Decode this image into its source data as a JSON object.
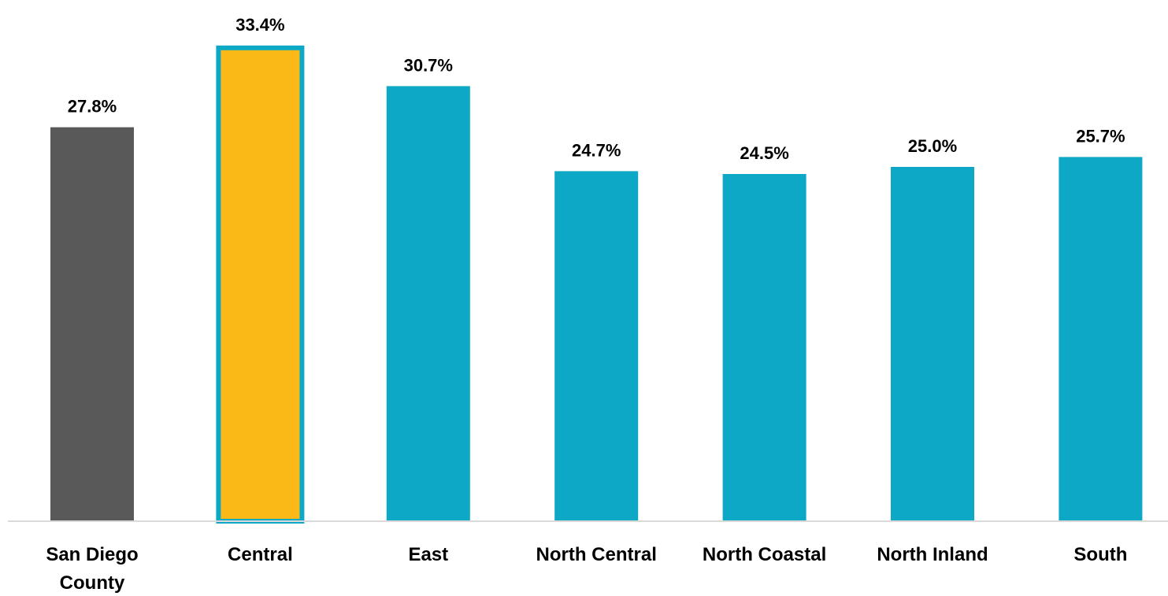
{
  "chart_data": {
    "type": "bar",
    "title": "",
    "xlabel": "",
    "ylabel": "",
    "categories": [
      "San Diego County",
      "Central",
      "East",
      "North Central",
      "North Coastal",
      "North Inland",
      "South"
    ],
    "tick_label_lines": [
      [
        "San Diego",
        "County"
      ],
      [
        "Central"
      ],
      [
        "East"
      ],
      [
        "North Central"
      ],
      [
        "North Coastal"
      ],
      [
        "North Inland"
      ],
      [
        "South"
      ]
    ],
    "values": [
      27.8,
      33.4,
      30.7,
      24.7,
      24.5,
      25.0,
      25.7
    ],
    "value_labels": [
      "27.8%",
      "33.4%",
      "30.7%",
      "24.7%",
      "24.5%",
      "25.0%",
      "25.7%"
    ],
    "ylim": [
      0,
      34
    ],
    "grid": false,
    "legend": "none",
    "colors": {
      "county": "#595959",
      "highlight": "#FBB917",
      "highlight_outline": "#0CA8C5",
      "region": "#0CA8C5",
      "axis": "#d9d9d9"
    },
    "bar_color_keys": [
      "county",
      "highlight",
      "region",
      "region",
      "region",
      "region",
      "region"
    ],
    "highlighted_index": 1
  }
}
